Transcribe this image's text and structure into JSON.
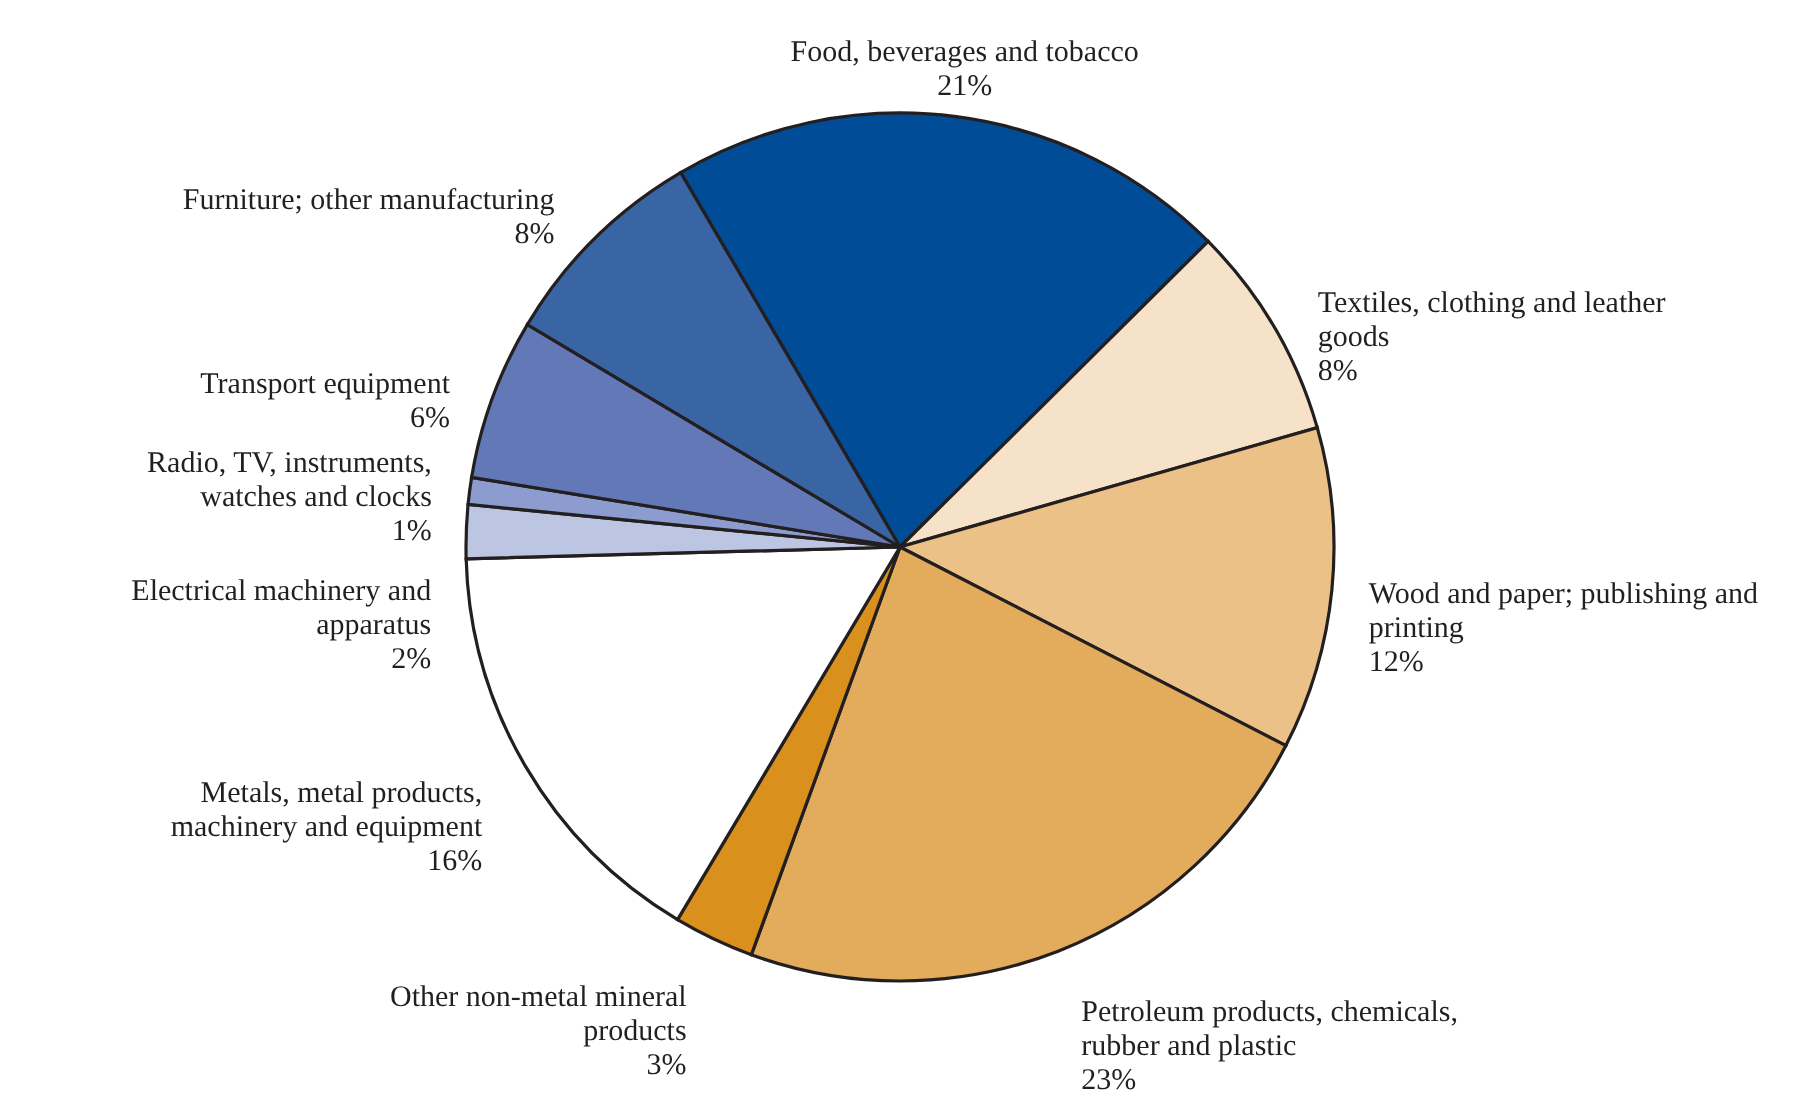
{
  "chart_data": {
    "type": "pie",
    "categories": [
      "Food, beverages and tobacco",
      "Textiles, clothing and leather goods",
      "Wood and paper; publishing and printing",
      "Petroleum products, chemicals, rubber and  plastic",
      "Other non-metal mineral products",
      "Metals, metal products, machinery and equipment",
      "Electrical machinery and apparatus",
      "Radio, TV, instruments, watches and clocks",
      "Transport equipment",
      "Furniture; other manufacturing"
    ],
    "values": [
      21,
      8,
      12,
      23,
      3,
      16,
      2,
      1,
      6,
      8
    ],
    "value_labels": [
      "21%",
      "8%",
      "12%",
      "23%",
      "3%",
      "16%",
      "2%",
      "1%",
      "6%",
      "8%"
    ],
    "colors": [
      "#004c97",
      "#f5e2c8",
      "#ecc187",
      "#e3ab5c",
      "#d9901c",
      "#ffffff",
      "#bcc5e1",
      "#8d9cce",
      "#6379b7",
      "#3a65a5"
    ]
  }
}
